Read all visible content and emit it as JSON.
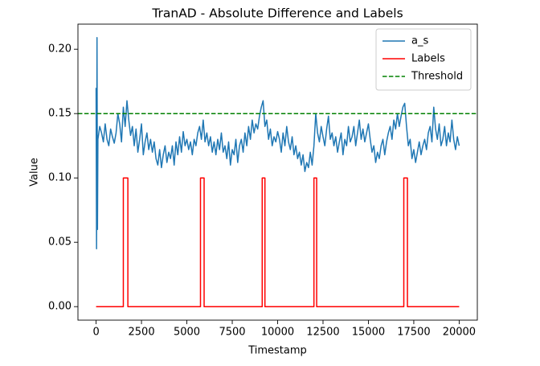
{
  "chart_data": {
    "type": "line",
    "title": "TranAD - Absolute Difference and Labels",
    "xlabel": "Timestamp",
    "ylabel": "Value",
    "xlim": [
      -1000,
      21000
    ],
    "ylim": [
      -0.0105,
      0.2195
    ],
    "xticks": [
      0,
      2500,
      5000,
      7500,
      10000,
      12500,
      15000,
      17500,
      20000
    ],
    "yticks": [
      {
        "value": 0,
        "label": "0.00"
      },
      {
        "value": 0.05,
        "label": "0.05"
      },
      {
        "value": 0.1,
        "label": "0.10"
      },
      {
        "value": 0.15,
        "label": "0.15"
      },
      {
        "value": 0.2,
        "label": "0.20"
      }
    ],
    "legend": "upper right",
    "series": [
      {
        "name": "a_s",
        "color": "#1f77b4",
        "x": [
          0,
          25,
          50,
          75,
          100,
          200,
          300,
          400,
          500,
          600,
          700,
          800,
          900,
          1000,
          1100,
          1200,
          1300,
          1400,
          1500,
          1600,
          1700,
          1800,
          1900,
          2000,
          2100,
          2200,
          2300,
          2400,
          2500,
          2600,
          2700,
          2800,
          2900,
          3000,
          3100,
          3200,
          3300,
          3400,
          3500,
          3600,
          3700,
          3800,
          3900,
          4000,
          4100,
          4200,
          4300,
          4400,
          4500,
          4600,
          4700,
          4800,
          4900,
          5000,
          5100,
          5200,
          5300,
          5400,
          5500,
          5600,
          5700,
          5800,
          5900,
          6000,
          6100,
          6200,
          6300,
          6400,
          6500,
          6600,
          6700,
          6800,
          6900,
          7000,
          7100,
          7200,
          7300,
          7400,
          7500,
          7600,
          7700,
          7800,
          7900,
          8000,
          8100,
          8200,
          8300,
          8400,
          8500,
          8600,
          8700,
          8800,
          8900,
          9000,
          9100,
          9200,
          9300,
          9400,
          9500,
          9600,
          9700,
          9800,
          9900,
          10000,
          10100,
          10200,
          10300,
          10400,
          10500,
          10600,
          10700,
          10800,
          10900,
          11000,
          11100,
          11200,
          11300,
          11400,
          11500,
          11600,
          11700,
          11800,
          11900,
          12000,
          12100,
          12200,
          12300,
          12400,
          12500,
          12600,
          12700,
          12800,
          12900,
          13000,
          13100,
          13200,
          13300,
          13400,
          13500,
          13600,
          13700,
          13800,
          13900,
          14000,
          14100,
          14200,
          14300,
          14400,
          14500,
          14600,
          14700,
          14800,
          14900,
          15000,
          15100,
          15200,
          15300,
          15400,
          15500,
          15600,
          15700,
          15800,
          15900,
          16000,
          16100,
          16200,
          16300,
          16400,
          16500,
          16600,
          16700,
          16800,
          16900,
          17000,
          17100,
          17200,
          17300,
          17400,
          17500,
          17600,
          17700,
          17800,
          17900,
          18000,
          18100,
          18200,
          18300,
          18400,
          18500,
          18600,
          18700,
          18800,
          18900,
          19000,
          19100,
          19200,
          19300,
          19400,
          19500,
          19600,
          19700,
          19800,
          19900,
          20000
        ],
        "values": [
          0.17,
          0.045,
          0.209,
          0.06,
          0.13,
          0.14,
          0.135,
          0.128,
          0.142,
          0.13,
          0.125,
          0.138,
          0.132,
          0.127,
          0.135,
          0.15,
          0.142,
          0.128,
          0.155,
          0.14,
          0.16,
          0.145,
          0.133,
          0.14,
          0.125,
          0.138,
          0.12,
          0.13,
          0.142,
          0.118,
          0.128,
          0.135,
          0.122,
          0.13,
          0.12,
          0.128,
          0.115,
          0.11,
          0.122,
          0.108,
          0.118,
          0.125,
          0.112,
          0.12,
          0.115,
          0.125,
          0.11,
          0.128,
          0.118,
          0.132,
          0.12,
          0.136,
          0.125,
          0.13,
          0.122,
          0.128,
          0.118,
          0.13,
          0.125,
          0.135,
          0.14,
          0.13,
          0.145,
          0.128,
          0.135,
          0.125,
          0.132,
          0.12,
          0.128,
          0.118,
          0.13,
          0.122,
          0.135,
          0.12,
          0.125,
          0.115,
          0.128,
          0.11,
          0.122,
          0.118,
          0.13,
          0.112,
          0.125,
          0.13,
          0.12,
          0.135,
          0.125,
          0.14,
          0.13,
          0.145,
          0.135,
          0.142,
          0.138,
          0.148,
          0.155,
          0.16,
          0.14,
          0.145,
          0.13,
          0.138,
          0.125,
          0.132,
          0.128,
          0.136,
          0.13,
          0.12,
          0.135,
          0.125,
          0.14,
          0.128,
          0.122,
          0.132,
          0.118,
          0.125,
          0.115,
          0.12,
          0.11,
          0.118,
          0.105,
          0.112,
          0.108,
          0.12,
          0.11,
          0.125,
          0.15,
          0.135,
          0.128,
          0.14,
          0.132,
          0.125,
          0.138,
          0.148,
          0.13,
          0.135,
          0.125,
          0.132,
          0.12,
          0.128,
          0.135,
          0.118,
          0.13,
          0.125,
          0.14,
          0.128,
          0.132,
          0.14,
          0.125,
          0.135,
          0.145,
          0.13,
          0.138,
          0.128,
          0.135,
          0.142,
          0.13,
          0.12,
          0.125,
          0.112,
          0.12,
          0.115,
          0.125,
          0.13,
          0.118,
          0.128,
          0.135,
          0.14,
          0.13,
          0.145,
          0.138,
          0.15,
          0.14,
          0.148,
          0.155,
          0.158,
          0.14,
          0.125,
          0.13,
          0.115,
          0.122,
          0.112,
          0.12,
          0.128,
          0.118,
          0.125,
          0.13,
          0.122,
          0.135,
          0.14,
          0.128,
          0.155,
          0.138,
          0.13,
          0.142,
          0.125,
          0.13,
          0.14,
          0.125,
          0.135,
          0.128,
          0.145,
          0.13,
          0.122,
          0.132,
          0.125
        ]
      },
      {
        "name": "Labels",
        "color": "red",
        "x": [
          0,
          1500,
          1500,
          1750,
          1750,
          5750,
          5750,
          5950,
          5950,
          9150,
          9150,
          9300,
          9300,
          12000,
          12000,
          12150,
          12150,
          16950,
          16950,
          17150,
          17150,
          20000
        ],
        "values": [
          0,
          0,
          0.1,
          0.1,
          0,
          0,
          0.1,
          0.1,
          0,
          0,
          0.1,
          0.1,
          0,
          0,
          0.1,
          0.1,
          0,
          0,
          0.1,
          0.1,
          0,
          0
        ]
      }
    ],
    "hlines": [
      {
        "name": "Threshold",
        "color": "green",
        "value": 0.15,
        "linestyle": "dashed"
      }
    ]
  }
}
